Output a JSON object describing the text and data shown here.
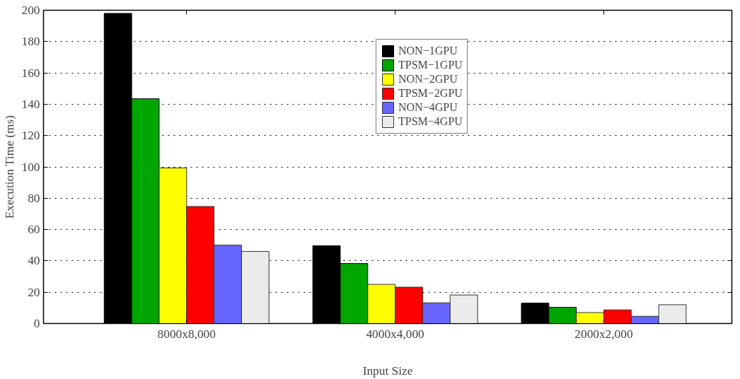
{
  "chart_data": {
    "type": "bar",
    "xlabel": "Input Size",
    "ylabel": "Execution Time (ms)",
    "categories": [
      "8000x8,000",
      "4000x4,000",
      "2000x2,000"
    ],
    "series": [
      {
        "name": "NON−1GPU",
        "color": "#000000",
        "values": [
          198,
          49.6,
          13
        ]
      },
      {
        "name": "TPSM−1GPU",
        "color": "#00a600",
        "values": [
          143.5,
          38.3,
          10.3
        ]
      },
      {
        "name": "NON−2GPU",
        "color": "#ffff00",
        "values": [
          99.3,
          25,
          7
        ]
      },
      {
        "name": "TPSM−2GPU",
        "color": "#ff0000",
        "values": [
          74.7,
          23.2,
          8.7
        ]
      },
      {
        "name": "NON−4GPU",
        "color": "#6666ff",
        "values": [
          50,
          13.2,
          4.6
        ]
      },
      {
        "name": "TPSM−4GPU",
        "color": "#ebebeb",
        "values": [
          46,
          18.2,
          12
        ]
      }
    ],
    "ylim": [
      0,
      200
    ],
    "yticks": [
      0,
      20,
      40,
      60,
      80,
      100,
      120,
      140,
      160,
      180,
      200
    ],
    "grid": "y",
    "legend": "top right"
  }
}
